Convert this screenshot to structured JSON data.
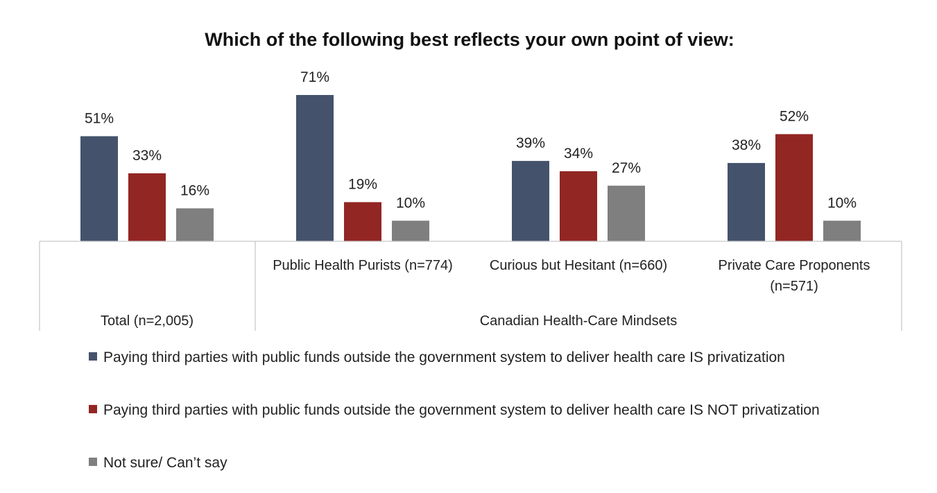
{
  "chart_data": {
    "type": "bar",
    "title": "Which of the following best reflects your own point of view:",
    "categories": [
      "Total (n=2,005)",
      "Public Health Purists (n=774)",
      "Curious but Hesitant (n=660)",
      "Private Care Proponents (n=571)"
    ],
    "category_lines": [
      [],
      [
        "Public Health Purists (n=774)"
      ],
      [
        "Curious but Hesitant (n=660)"
      ],
      [
        "Private Care Proponents",
        "(n=571)"
      ]
    ],
    "groups": [
      {
        "label": "Total (n=2,005)",
        "categories": [
          0
        ]
      },
      {
        "label": "Canadian Health-Care Mindsets",
        "categories": [
          1,
          2,
          3
        ]
      }
    ],
    "series": [
      {
        "name": "Paying third parties with public funds outside the government system to deliver health care IS privatization",
        "values": [
          51,
          71,
          39,
          38
        ],
        "labels": [
          "51%",
          "71%",
          "39%",
          "38%"
        ],
        "color": "#44526b"
      },
      {
        "name": "Paying third parties with public funds outside the government system to deliver health care IS NOT privatization",
        "values": [
          33,
          19,
          34,
          52
        ],
        "labels": [
          "33%",
          "19%",
          "34%",
          "52%"
        ],
        "color": "#922623"
      },
      {
        "name": "Not sure/ Can’t say",
        "values": [
          16,
          10,
          27,
          10
        ],
        "labels": [
          "16%",
          "10%",
          "27%",
          "10%"
        ],
        "color": "#7f7f7f"
      }
    ],
    "ylim": [
      0,
      80
    ],
    "unit": "%",
    "grid": false,
    "legend_position": "bottom"
  }
}
